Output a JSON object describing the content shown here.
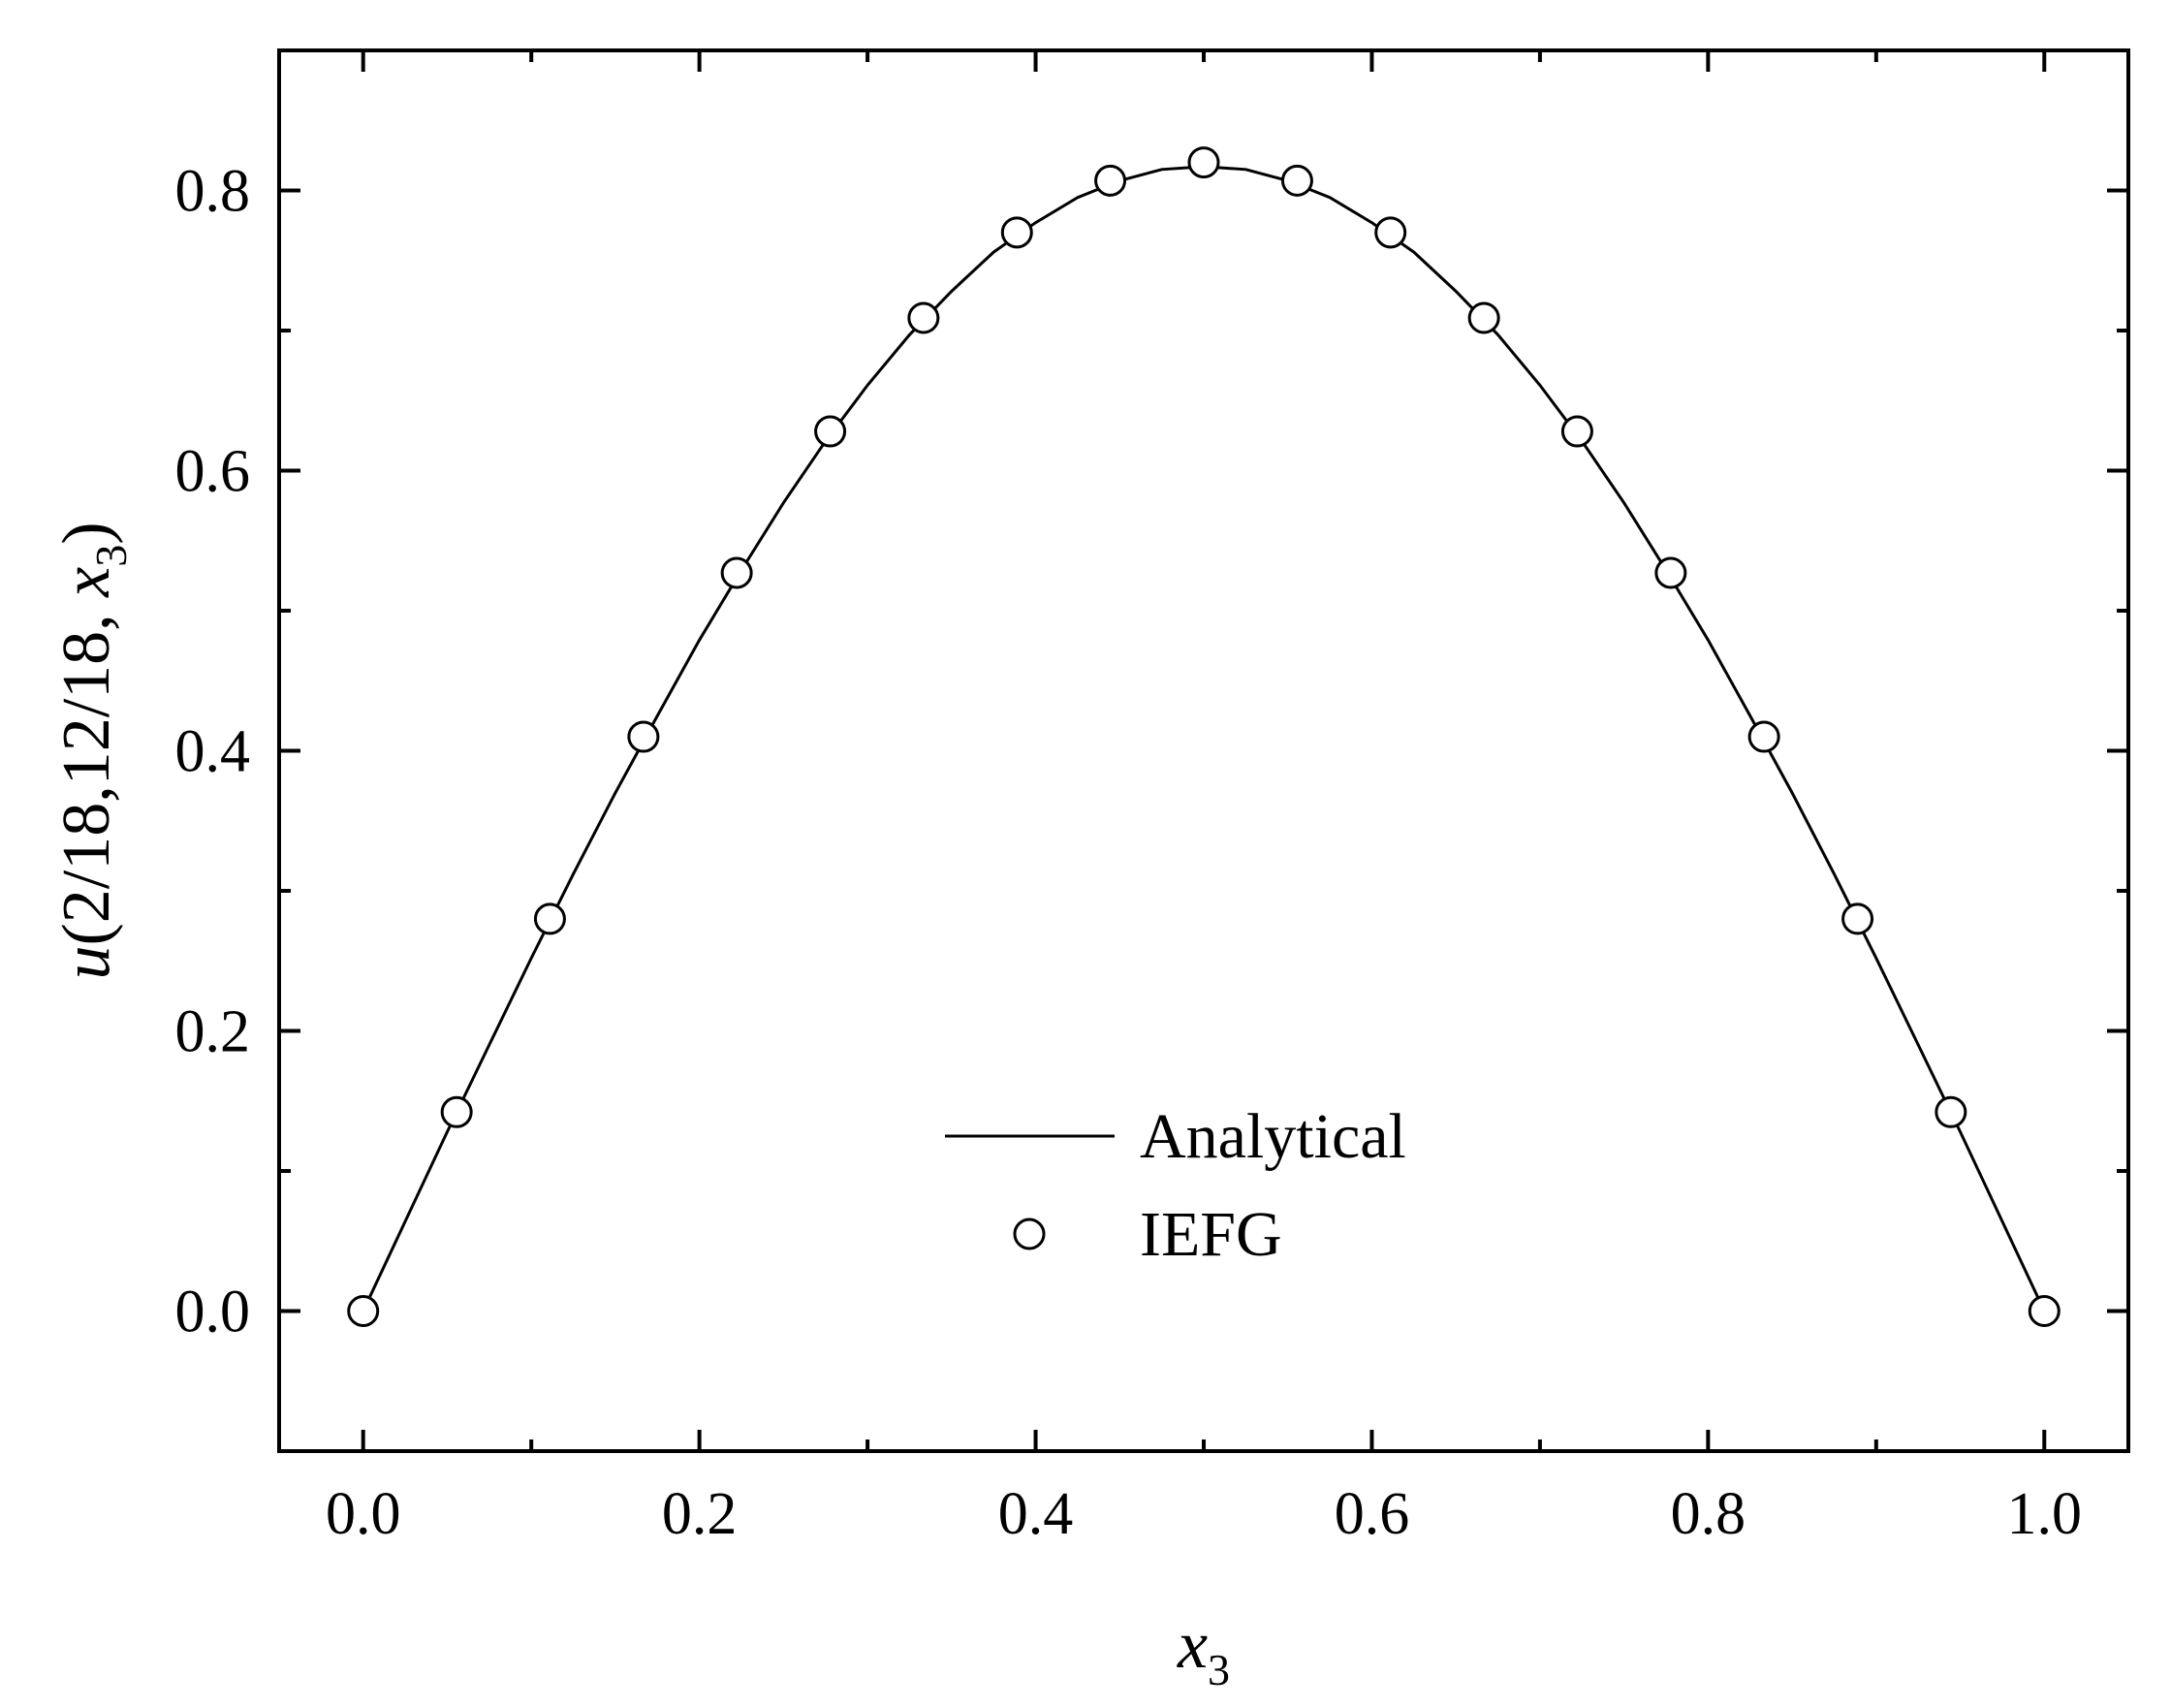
{
  "chart_data": {
    "type": "line",
    "title": "",
    "xlabel": {
      "var": "x",
      "sub": "3"
    },
    "ylabel": {
      "var": "u",
      "args": "(2/18,12/18, ",
      "argvar": "x",
      "sub": "3",
      "close": ")"
    },
    "xlim": [
      -0.05,
      1.05
    ],
    "ylim": [
      -0.1,
      0.9
    ],
    "xticks": [
      "0.0",
      "0.2",
      "0.4",
      "0.6",
      "0.8",
      "1.0"
    ],
    "yticks": [
      "0.0",
      "0.2",
      "0.4",
      "0.6",
      "0.8"
    ],
    "grid": false,
    "legend": "center",
    "series": [
      {
        "name": "Analytical",
        "style": "line",
        "x": [
          0.0,
          0.025,
          0.05,
          0.075,
          0.1,
          0.125,
          0.15,
          0.175,
          0.2,
          0.225,
          0.25,
          0.275,
          0.3,
          0.325,
          0.35,
          0.375,
          0.4,
          0.425,
          0.45,
          0.475,
          0.5,
          0.525,
          0.55,
          0.575,
          0.6,
          0.625,
          0.65,
          0.675,
          0.7,
          0.725,
          0.75,
          0.775,
          0.8,
          0.825,
          0.85,
          0.875,
          0.9,
          0.925,
          0.95,
          0.975,
          1.0
        ],
        "y": [
          0.0,
          0.064,
          0.128,
          0.19,
          0.252,
          0.312,
          0.37,
          0.425,
          0.479,
          0.529,
          0.577,
          0.621,
          0.661,
          0.697,
          0.728,
          0.756,
          0.777,
          0.795,
          0.807,
          0.815,
          0.817,
          0.815,
          0.807,
          0.795,
          0.777,
          0.756,
          0.728,
          0.697,
          0.661,
          0.621,
          0.577,
          0.529,
          0.479,
          0.425,
          0.37,
          0.312,
          0.252,
          0.19,
          0.128,
          0.064,
          0.0
        ]
      },
      {
        "name": "IEFG",
        "style": "open-circle",
        "x": [
          0.0,
          0.0556,
          0.1111,
          0.1667,
          0.2222,
          0.2778,
          0.3333,
          0.3889,
          0.4444,
          0.5,
          0.5556,
          0.6111,
          0.6667,
          0.7222,
          0.7778,
          0.8333,
          0.8889,
          0.9444,
          1.0
        ],
        "y": [
          0.0,
          0.142,
          0.28,
          0.41,
          0.527,
          0.628,
          0.709,
          0.77,
          0.807,
          0.82,
          0.807,
          0.77,
          0.709,
          0.628,
          0.527,
          0.41,
          0.28,
          0.142,
          0.0
        ]
      }
    ]
  }
}
